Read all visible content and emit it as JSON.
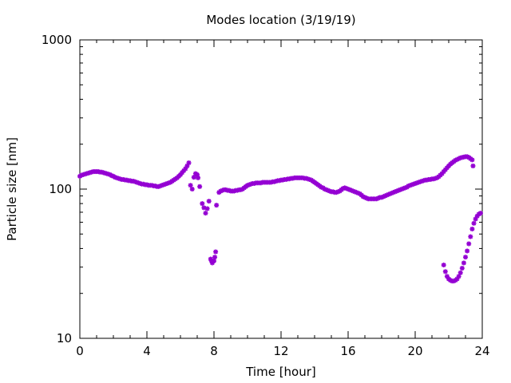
{
  "chart_data": {
    "type": "scatter",
    "title": "Modes location (3/19/19)",
    "xlabel": "Time [hour]",
    "ylabel": "Particle size [nm]",
    "xlim": [
      0,
      24
    ],
    "ylim": [
      10,
      1000
    ],
    "y_scale": "log",
    "grid": false,
    "x_ticks": [
      0,
      4,
      8,
      12,
      16,
      20,
      24
    ],
    "x_tick_labels": [
      "0",
      "4",
      "8",
      "12",
      "16",
      "20",
      "24"
    ],
    "y_ticks": [
      10,
      100,
      1000
    ],
    "y_tick_labels": [
      "10",
      "100",
      "1000"
    ],
    "marker_color": "#9400d3",
    "series": [
      {
        "points": [
          [
            0.0,
            122
          ],
          [
            0.1,
            124
          ],
          [
            0.2,
            125
          ],
          [
            0.3,
            126
          ],
          [
            0.4,
            127
          ],
          [
            0.5,
            128
          ],
          [
            0.6,
            129
          ],
          [
            0.7,
            130
          ],
          [
            0.8,
            131
          ],
          [
            0.9,
            131
          ],
          [
            1.0,
            131
          ],
          [
            1.1,
            131
          ],
          [
            1.2,
            130
          ],
          [
            1.3,
            130
          ],
          [
            1.4,
            129
          ],
          [
            1.5,
            128
          ],
          [
            1.6,
            127
          ],
          [
            1.7,
            126
          ],
          [
            1.8,
            125
          ],
          [
            1.9,
            123
          ],
          [
            2.0,
            122
          ],
          [
            2.1,
            120
          ],
          [
            2.2,
            119
          ],
          [
            2.3,
            118
          ],
          [
            2.4,
            117
          ],
          [
            2.5,
            116
          ],
          [
            2.6,
            116
          ],
          [
            2.7,
            115
          ],
          [
            2.8,
            115
          ],
          [
            2.9,
            114
          ],
          [
            3.0,
            114
          ],
          [
            3.1,
            113
          ],
          [
            3.2,
            113
          ],
          [
            3.3,
            112
          ],
          [
            3.4,
            111
          ],
          [
            3.5,
            110
          ],
          [
            3.6,
            109
          ],
          [
            3.7,
            108
          ],
          [
            3.8,
            108
          ],
          [
            3.9,
            107
          ],
          [
            4.0,
            107
          ],
          [
            4.1,
            106
          ],
          [
            4.2,
            106
          ],
          [
            4.3,
            106
          ],
          [
            4.4,
            105
          ],
          [
            4.5,
            105
          ],
          [
            4.6,
            104
          ],
          [
            4.7,
            104
          ],
          [
            4.8,
            105
          ],
          [
            4.9,
            106
          ],
          [
            5.0,
            107
          ],
          [
            5.1,
            108
          ],
          [
            5.2,
            109
          ],
          [
            5.3,
            110
          ],
          [
            5.4,
            111
          ],
          [
            5.5,
            113
          ],
          [
            5.6,
            115
          ],
          [
            5.7,
            117
          ],
          [
            5.8,
            119
          ],
          [
            5.9,
            122
          ],
          [
            6.0,
            125
          ],
          [
            6.1,
            129
          ],
          [
            6.2,
            133
          ],
          [
            6.3,
            137
          ],
          [
            6.4,
            143
          ],
          [
            6.5,
            150
          ],
          [
            6.6,
            106
          ],
          [
            6.7,
            100
          ],
          [
            6.8,
            120
          ],
          [
            6.9,
            127
          ],
          [
            7.0,
            125
          ],
          [
            7.05,
            119
          ],
          [
            7.15,
            104
          ],
          [
            7.3,
            80
          ],
          [
            7.4,
            75
          ],
          [
            7.5,
            69
          ],
          [
            7.6,
            74
          ],
          [
            7.7,
            83
          ],
          [
            7.8,
            34
          ],
          [
            7.85,
            33
          ],
          [
            7.9,
            32
          ],
          [
            8.0,
            33
          ],
          [
            8.05,
            35
          ],
          [
            8.1,
            38
          ],
          [
            8.15,
            78
          ],
          [
            8.3,
            95
          ],
          [
            8.4,
            97
          ],
          [
            8.5,
            98
          ],
          [
            8.6,
            99
          ],
          [
            8.7,
            99
          ],
          [
            8.8,
            98
          ],
          [
            8.9,
            98
          ],
          [
            9.0,
            97
          ],
          [
            9.1,
            97
          ],
          [
            9.2,
            97
          ],
          [
            9.3,
            98
          ],
          [
            9.4,
            98
          ],
          [
            9.5,
            99
          ],
          [
            9.6,
            99
          ],
          [
            9.7,
            100
          ],
          [
            9.8,
            102
          ],
          [
            9.9,
            104
          ],
          [
            10.0,
            106
          ],
          [
            10.1,
            107
          ],
          [
            10.2,
            108
          ],
          [
            10.3,
            109
          ],
          [
            10.4,
            109
          ],
          [
            10.5,
            110
          ],
          [
            10.6,
            110
          ],
          [
            10.7,
            110
          ],
          [
            10.8,
            110
          ],
          [
            10.9,
            111
          ],
          [
            11.0,
            111
          ],
          [
            11.1,
            111
          ],
          [
            11.2,
            111
          ],
          [
            11.3,
            111
          ],
          [
            11.4,
            111
          ],
          [
            11.5,
            112
          ],
          [
            11.6,
            112
          ],
          [
            11.7,
            113
          ],
          [
            11.8,
            114
          ],
          [
            11.9,
            114
          ],
          [
            12.0,
            115
          ],
          [
            12.1,
            115
          ],
          [
            12.2,
            116
          ],
          [
            12.3,
            116
          ],
          [
            12.4,
            117
          ],
          [
            12.5,
            117
          ],
          [
            12.6,
            118
          ],
          [
            12.7,
            118
          ],
          [
            12.8,
            119
          ],
          [
            12.9,
            119
          ],
          [
            13.0,
            119
          ],
          [
            13.1,
            119
          ],
          [
            13.2,
            119
          ],
          [
            13.3,
            119
          ],
          [
            13.4,
            118
          ],
          [
            13.5,
            118
          ],
          [
            13.6,
            117
          ],
          [
            13.7,
            116
          ],
          [
            13.8,
            115
          ],
          [
            13.9,
            113
          ],
          [
            14.0,
            111
          ],
          [
            14.1,
            109
          ],
          [
            14.2,
            107
          ],
          [
            14.3,
            105
          ],
          [
            14.4,
            103
          ],
          [
            14.5,
            102
          ],
          [
            14.6,
            100
          ],
          [
            14.7,
            99
          ],
          [
            14.8,
            98
          ],
          [
            14.9,
            97
          ],
          [
            15.0,
            96
          ],
          [
            15.1,
            96
          ],
          [
            15.2,
            95
          ],
          [
            15.3,
            95
          ],
          [
            15.4,
            96
          ],
          [
            15.5,
            97
          ],
          [
            15.6,
            99
          ],
          [
            15.7,
            101
          ],
          [
            15.8,
            102
          ],
          [
            15.9,
            101
          ],
          [
            16.0,
            100
          ],
          [
            16.1,
            99
          ],
          [
            16.2,
            98
          ],
          [
            16.3,
            97
          ],
          [
            16.4,
            96
          ],
          [
            16.5,
            95
          ],
          [
            16.6,
            94
          ],
          [
            16.7,
            93
          ],
          [
            16.8,
            91
          ],
          [
            16.9,
            89
          ],
          [
            17.0,
            88
          ],
          [
            17.1,
            87
          ],
          [
            17.2,
            86
          ],
          [
            17.3,
            86
          ],
          [
            17.4,
            86
          ],
          [
            17.5,
            86
          ],
          [
            17.6,
            86
          ],
          [
            17.7,
            86
          ],
          [
            17.8,
            87
          ],
          [
            17.9,
            88
          ],
          [
            18.0,
            88
          ],
          [
            18.1,
            89
          ],
          [
            18.2,
            90
          ],
          [
            18.3,
            91
          ],
          [
            18.4,
            92
          ],
          [
            18.5,
            93
          ],
          [
            18.6,
            94
          ],
          [
            18.7,
            95
          ],
          [
            18.8,
            96
          ],
          [
            18.9,
            97
          ],
          [
            19.0,
            98
          ],
          [
            19.1,
            99
          ],
          [
            19.2,
            100
          ],
          [
            19.3,
            101
          ],
          [
            19.4,
            102
          ],
          [
            19.5,
            103
          ],
          [
            19.6,
            105
          ],
          [
            19.7,
            106
          ],
          [
            19.8,
            107
          ],
          [
            19.9,
            108
          ],
          [
            20.0,
            109
          ],
          [
            20.1,
            110
          ],
          [
            20.2,
            111
          ],
          [
            20.3,
            112
          ],
          [
            20.4,
            113
          ],
          [
            20.5,
            114
          ],
          [
            20.6,
            115
          ],
          [
            20.7,
            115
          ],
          [
            20.8,
            116
          ],
          [
            20.9,
            116
          ],
          [
            21.0,
            117
          ],
          [
            21.1,
            117
          ],
          [
            21.2,
            118
          ],
          [
            21.3,
            119
          ],
          [
            21.4,
            121
          ],
          [
            21.5,
            124
          ],
          [
            21.6,
            127
          ],
          [
            21.7,
            131
          ],
          [
            21.8,
            135
          ],
          [
            21.9,
            139
          ],
          [
            22.0,
            143
          ],
          [
            22.1,
            147
          ],
          [
            22.2,
            150
          ],
          [
            22.3,
            153
          ],
          [
            22.4,
            156
          ],
          [
            22.5,
            158
          ],
          [
            22.6,
            160
          ],
          [
            22.7,
            162
          ],
          [
            22.8,
            163
          ],
          [
            22.9,
            164
          ],
          [
            23.0,
            165
          ],
          [
            23.1,
            165
          ],
          [
            23.2,
            163
          ],
          [
            23.3,
            160
          ],
          [
            23.4,
            157
          ],
          [
            23.45,
            143
          ],
          [
            21.7,
            31
          ],
          [
            21.8,
            28
          ],
          [
            21.9,
            26
          ],
          [
            22.0,
            25
          ],
          [
            22.1,
            24.5
          ],
          [
            22.2,
            24.2
          ],
          [
            22.3,
            24.2
          ],
          [
            22.4,
            24.5
          ],
          [
            22.5,
            25
          ],
          [
            22.6,
            26
          ],
          [
            22.7,
            27.5
          ],
          [
            22.8,
            29.5
          ],
          [
            22.9,
            32
          ],
          [
            23.0,
            35
          ],
          [
            23.1,
            38.5
          ],
          [
            23.2,
            43
          ],
          [
            23.3,
            48
          ],
          [
            23.4,
            54
          ],
          [
            23.5,
            59
          ],
          [
            23.6,
            63
          ],
          [
            23.7,
            66
          ],
          [
            23.8,
            68
          ],
          [
            23.9,
            69
          ]
        ]
      }
    ]
  }
}
